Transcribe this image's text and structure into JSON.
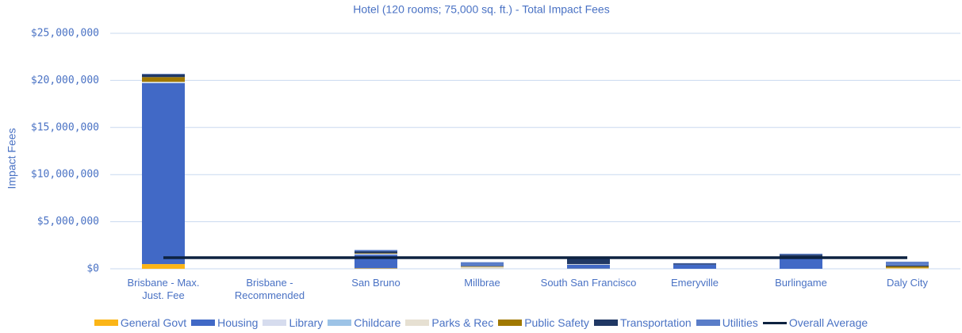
{
  "chart_data": {
    "type": "bar",
    "stacked": true,
    "title": "Hotel (120 rooms; 75,000 sq. ft.) - Total Impact Fees",
    "y_label": "Impact Fees",
    "categories": [
      "Brisbane - Max.\nJust. Fee",
      "Brisbane -\nRecommended",
      "San Bruno",
      "Millbrae",
      "South San Francisco",
      "Emeryville",
      "Burlingame",
      "Daly City"
    ],
    "series": [
      {
        "name": "General Govt",
        "color": "#fbb517",
        "values": [
          500000,
          0,
          50000,
          20000,
          20000,
          0,
          0,
          50000
        ]
      },
      {
        "name": "Housing",
        "color": "#4169c6",
        "values": [
          19200000,
          0,
          1450000,
          0,
          400000,
          450000,
          1100000,
          0
        ]
      },
      {
        "name": "Library",
        "color": "#d6dcee",
        "values": [
          50000,
          0,
          20000,
          20000,
          20000,
          0,
          0,
          0
        ]
      },
      {
        "name": "Childcare",
        "color": "#9dc3e6",
        "values": [
          50000,
          0,
          30000,
          20000,
          20000,
          0,
          0,
          0
        ]
      },
      {
        "name": "Parks & Rec",
        "color": "#e6e0d2",
        "values": [
          50000,
          0,
          50000,
          150000,
          40000,
          0,
          0,
          50000
        ]
      },
      {
        "name": "Public Safety",
        "color": "#a07800",
        "values": [
          500000,
          0,
          50000,
          50000,
          0,
          0,
          0,
          150000
        ]
      },
      {
        "name": "Transportation",
        "color": "#203864",
        "values": [
          300000,
          0,
          200000,
          40000,
          600000,
          100000,
          400000,
          100000
        ]
      },
      {
        "name": "Utilities",
        "color": "#5a7dc8",
        "values": [
          50000,
          0,
          150000,
          400000,
          100000,
          50000,
          100000,
          400000
        ]
      },
      {
        "name": "Overall Average",
        "color": "#0d2240",
        "type": "line",
        "values": [
          1180000,
          1180000,
          1180000,
          1180000,
          1180000,
          1180000,
          1180000,
          1180000
        ]
      }
    ],
    "ylim": [
      0,
      25000000
    ],
    "yticks": [
      {
        "value": 0,
        "label": "$0"
      },
      {
        "value": 5000000,
        "label": "$5,000,000"
      },
      {
        "value": 10000000,
        "label": "$10,000,000"
      },
      {
        "value": 15000000,
        "label": "$15,000,000"
      },
      {
        "value": 20000000,
        "label": "$20,000,000"
      },
      {
        "value": 25000000,
        "label": "$25,000,000"
      }
    ],
    "grid": true,
    "legend": "bottom"
  }
}
